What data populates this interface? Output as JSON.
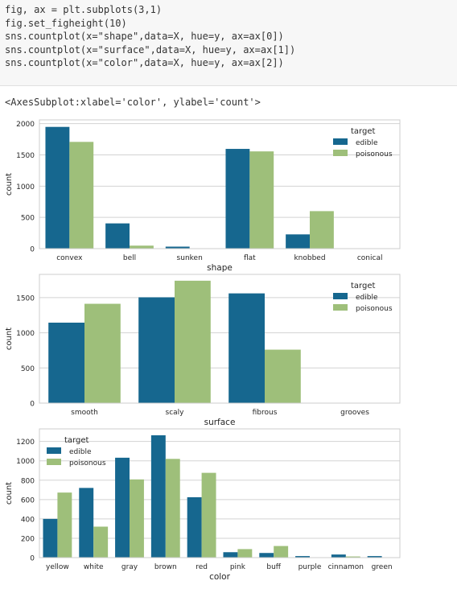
{
  "code_lines": [
    "fig, ax = plt.subplots(3,1)",
    "fig.set_figheight(10)",
    "sns.countplot(x=\"shape\",data=X, hue=y, ax=ax[0])",
    "sns.countplot(x=\"surface\",data=X, hue=y, ax=ax[1])",
    "sns.countplot(x=\"color\",data=X, hue=y, ax=ax[2])"
  ],
  "output_text": "<AxesSubplot:xlabel='color', ylabel='count'>",
  "colors": {
    "edible": "#16678f",
    "poisonous": "#9ebf7a",
    "grid": "#d3d3d3",
    "frame": "#cccccc"
  },
  "chart_data": [
    {
      "type": "bar",
      "xlabel": "shape",
      "ylabel": "count",
      "categories": [
        "convex",
        "bell",
        "sunken",
        "flat",
        "knobbed",
        "conical"
      ],
      "series": [
        {
          "name": "edible",
          "values": [
            1948,
            404,
            32,
            1596,
            228,
            0
          ]
        },
        {
          "name": "poisonous",
          "values": [
            1708,
            48,
            0,
            1556,
            600,
            4
          ]
        }
      ],
      "ylim": [
        0,
        2060
      ],
      "yticks": [
        0,
        500,
        1000,
        1500,
        2000
      ],
      "legend": {
        "title": "target",
        "placement": "top-right"
      },
      "grid": true
    },
    {
      "type": "bar",
      "xlabel": "surface",
      "ylabel": "count",
      "categories": [
        "smooth",
        "scaly",
        "fibrous",
        "grooves"
      ],
      "series": [
        {
          "name": "edible",
          "values": [
            1144,
            1504,
            1560,
            0
          ]
        },
        {
          "name": "poisonous",
          "values": [
            1412,
            1740,
            760,
            4
          ]
        }
      ],
      "ylim": [
        0,
        1830
      ],
      "yticks": [
        0,
        500,
        1000,
        1500
      ],
      "legend": {
        "title": "target",
        "placement": "top-right"
      },
      "grid": true
    },
    {
      "type": "bar",
      "xlabel": "color",
      "ylabel": "count",
      "categories": [
        "yellow",
        "white",
        "gray",
        "brown",
        "red",
        "pink",
        "buff",
        "purple",
        "cinnamon",
        "green"
      ],
      "series": [
        {
          "name": "edible",
          "values": [
            400,
            720,
            1032,
            1264,
            624,
            56,
            48,
            16,
            32,
            16
          ]
        },
        {
          "name": "poisonous",
          "values": [
            672,
            320,
            808,
            1020,
            876,
            88,
            120,
            0,
            12,
            0
          ]
        }
      ],
      "ylim": [
        0,
        1330
      ],
      "yticks": [
        0,
        200,
        400,
        600,
        800,
        1000,
        1200
      ],
      "legend": {
        "title": "target",
        "placement": "top-left"
      },
      "grid": true
    }
  ]
}
